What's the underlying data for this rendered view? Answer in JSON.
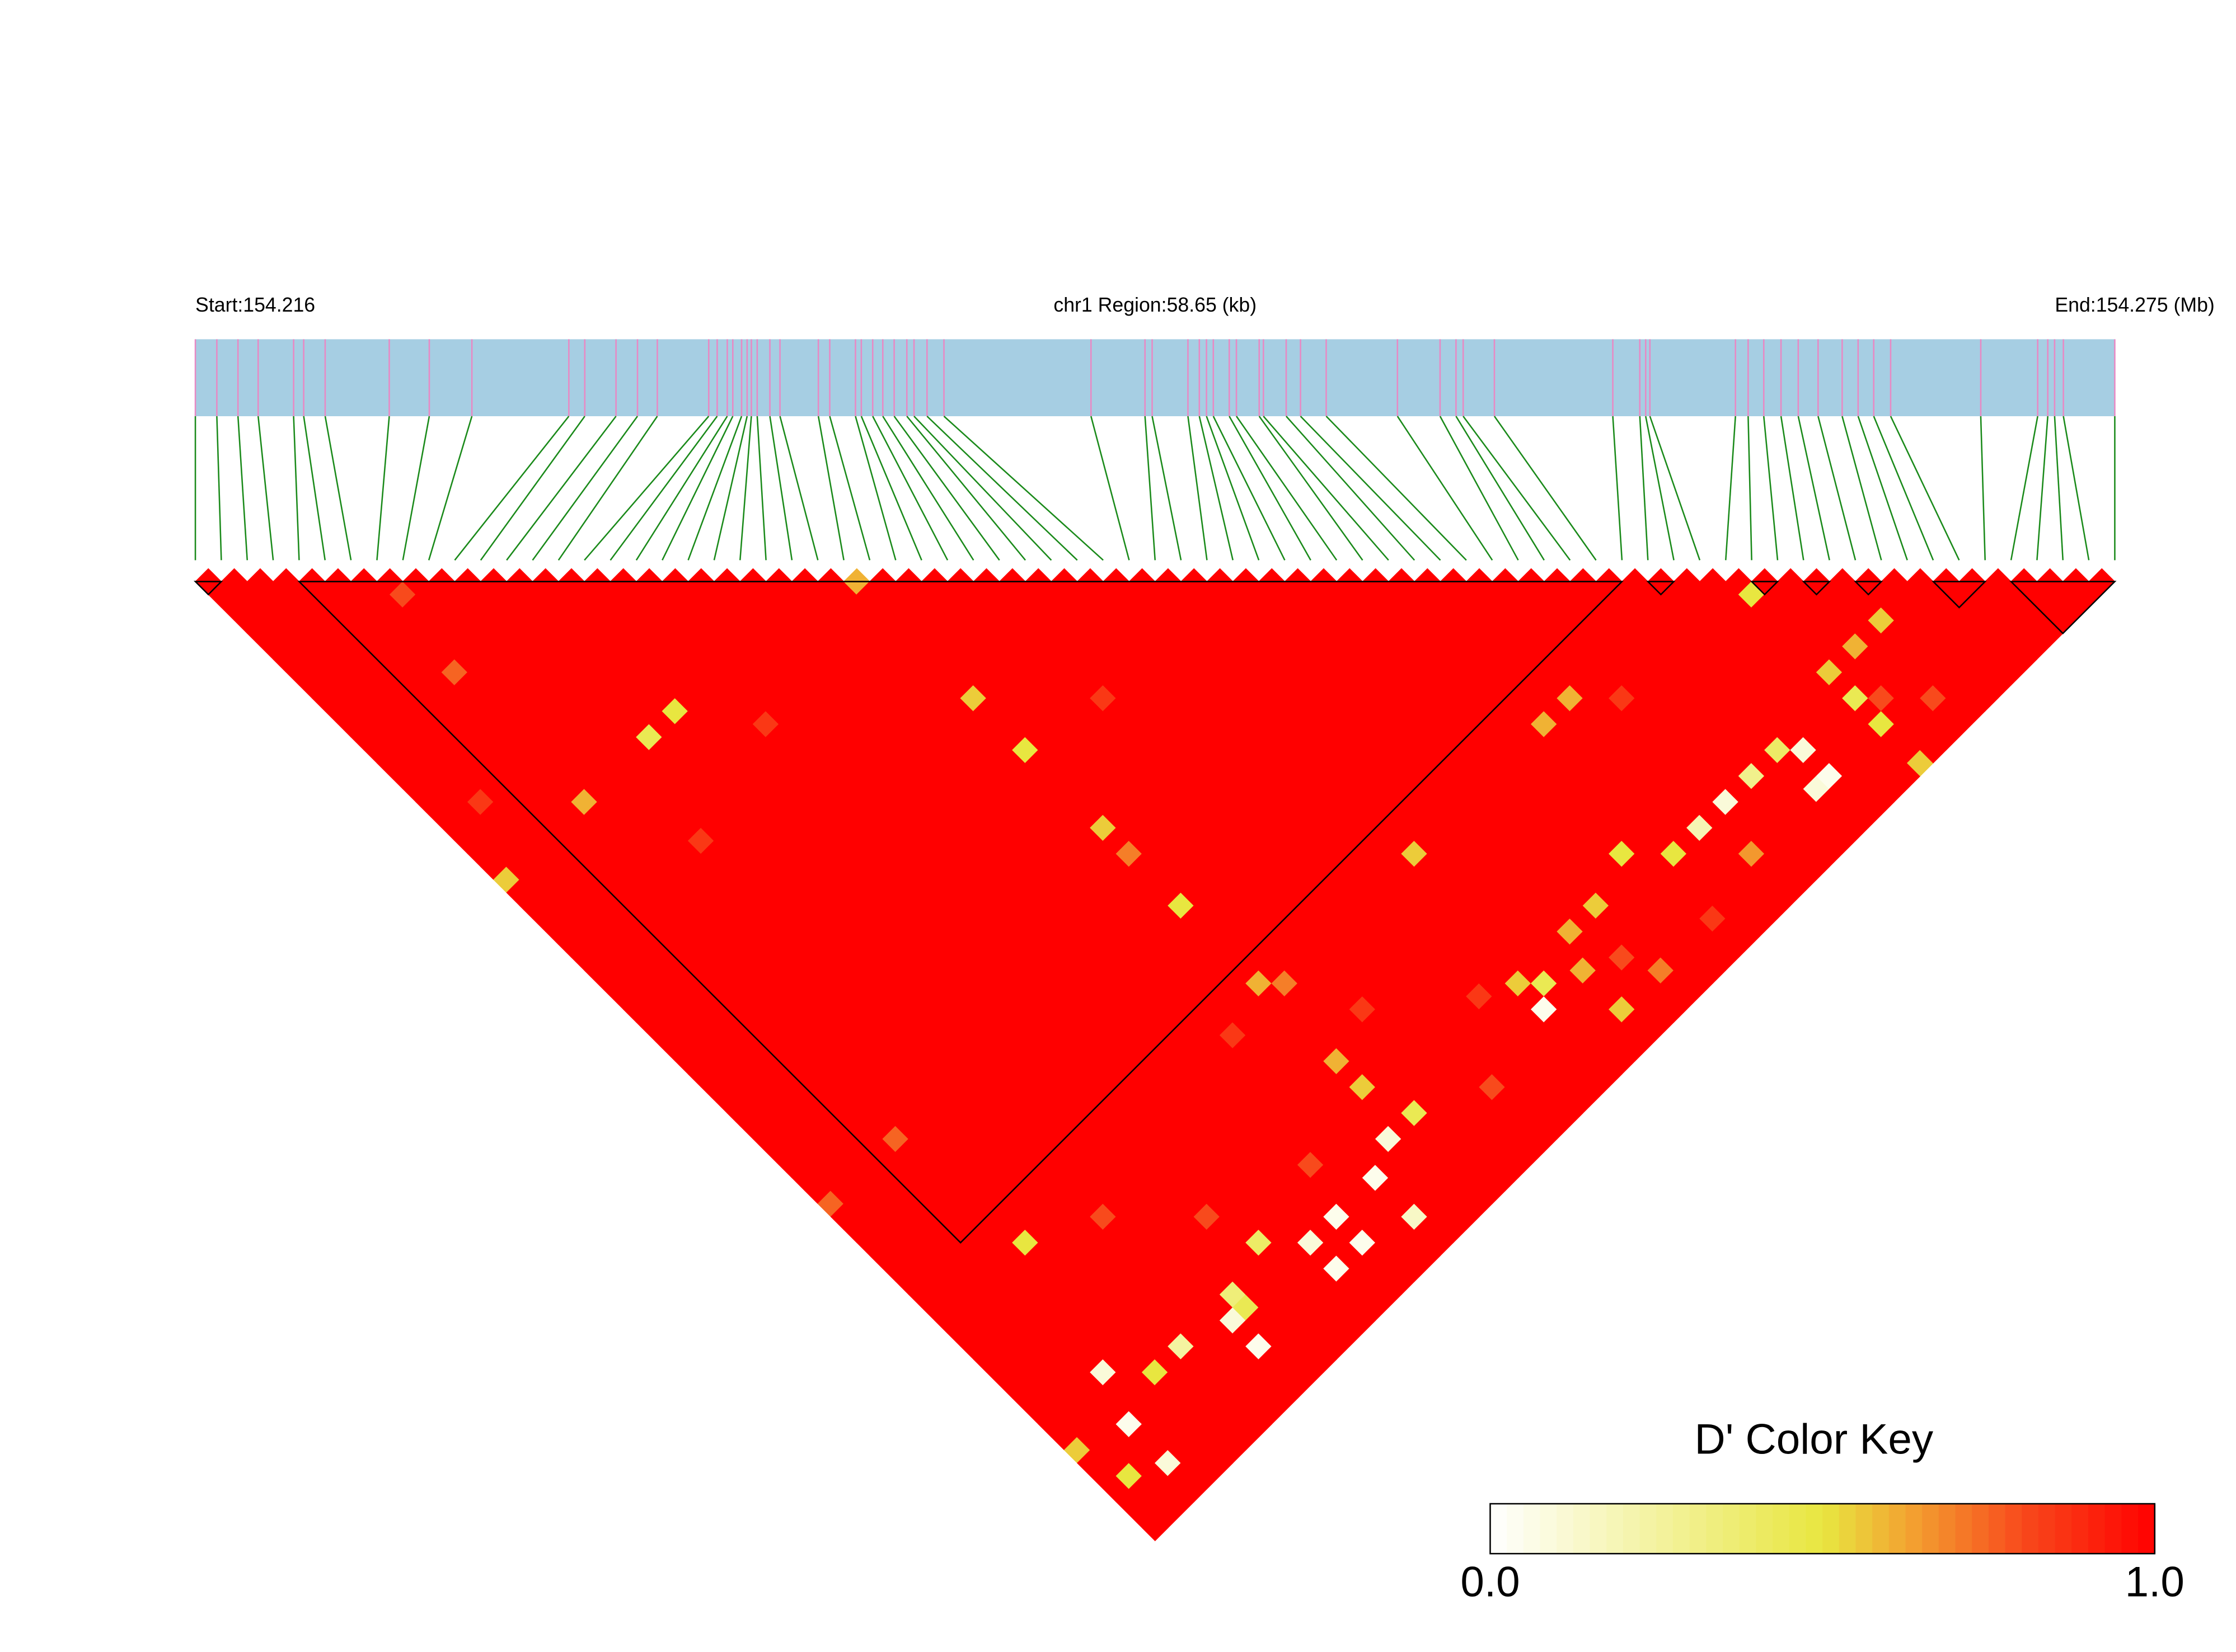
{
  "chart_data": {
    "type": "ld_heatmap",
    "start_label": "Start:154.216",
    "region_label": "chr1 Region:58.65 (kb)",
    "end_label": "End:154.275 (Mb)",
    "xlim": [
      154.216,
      154.275
    ],
    "snp_positions": [
      154.216,
      154.21666,
      154.21731,
      154.21793,
      154.21902,
      154.21933,
      154.21999,
      154.22196,
      154.22319,
      154.2245,
      154.22748,
      154.22797,
      154.22893,
      154.22959,
      154.2302,
      154.23178,
      154.23204,
      154.23235,
      154.23252,
      154.23279,
      154.23296,
      154.23309,
      154.23327,
      154.23366,
      154.23397,
      154.23515,
      154.2355,
      154.23629,
      154.23647,
      154.23682,
      154.23713,
      154.23748,
      154.23787,
      154.23809,
      154.23849,
      154.23901,
      154.24353,
      154.24519,
      154.24541,
      154.24651,
      154.24686,
      154.24708,
      154.24729,
      154.24778,
      154.248,
      154.2487,
      154.24883,
      154.24953,
      154.24997,
      154.25076,
      154.25295,
      154.25426,
      154.25475,
      154.25497,
      154.25593,
      154.25957,
      154.2604,
      154.26058,
      154.26071,
      154.26334,
      154.26373,
      154.26421,
      154.26474,
      154.26527,
      154.26588,
      154.26662,
      154.26711,
      154.26759,
      154.26811,
      154.27088,
      154.27263,
      154.27294,
      154.27315,
      154.27342,
      154.275
    ],
    "default_d": 1.0,
    "cells": [
      [
        25,
        26,
        0.6
      ],
      [
        25,
        35,
        0.55
      ],
      [
        25,
        39,
        0.5
      ],
      [
        11,
        24,
        0.45
      ],
      [
        13,
        24,
        0.5
      ],
      [
        25,
        45,
        0.55
      ],
      [
        25,
        47,
        0.7
      ],
      [
        25,
        51,
        0.5
      ],
      [
        36,
        58,
        0.55
      ],
      [
        25,
        57,
        0.6
      ],
      [
        26,
        58,
        0.7
      ],
      [
        0,
        24,
        0.55
      ],
      [
        6,
        58,
        0.5
      ],
      [
        25,
        63,
        0.6
      ],
      [
        59,
        61,
        0.5
      ],
      [
        61,
        67,
        0.6
      ],
      [
        63,
        67,
        0.55
      ],
      [
        59,
        67,
        0.55
      ],
      [
        59,
        69,
        0.45
      ],
      [
        55,
        69,
        0.1
      ],
      [
        54,
        68,
        0.4
      ],
      [
        55,
        71,
        0.05
      ],
      [
        54,
        71,
        0.1
      ],
      [
        50,
        68,
        0.1
      ],
      [
        48,
        68,
        0.2
      ],
      [
        52,
        68,
        0.3
      ],
      [
        59,
        71,
        0.5
      ],
      [
        48,
        58,
        0.6
      ],
      [
        46,
        58,
        0.6
      ],
      [
        44,
        66,
        0.5
      ],
      [
        46,
        68,
        0.5
      ],
      [
        41,
        67,
        0.55
      ],
      [
        39,
        67,
        0.6
      ],
      [
        35,
        69,
        0.05
      ],
      [
        35,
        67,
        0.55
      ],
      [
        36,
        68,
        0.45
      ],
      [
        38,
        69,
        0.6
      ],
      [
        38,
        72,
        0.55
      ],
      [
        25,
        65,
        0.55
      ],
      [
        26,
        68,
        0.45
      ],
      [
        24,
        68,
        0.1
      ],
      [
        22,
        69,
        0.05
      ],
      [
        22,
        72,
        0.15
      ],
      [
        19,
        69,
        0.05
      ],
      [
        17,
        69,
        0.1
      ],
      [
        19,
        71,
        0.05
      ],
      [
        15,
        67,
        0.4
      ],
      [
        17,
        71,
        0.05
      ],
      [
        12,
        68,
        0.35
      ],
      [
        12,
        69,
        0.45
      ],
      [
        11,
        69,
        0.1
      ],
      [
        11,
        71,
        0.05
      ],
      [
        6,
        68,
        0.5
      ],
      [
        8,
        68,
        0.25
      ],
      [
        4,
        66,
        0.1
      ],
      [
        3,
        69,
        0.05
      ],
      [
        3,
        72,
        0.1
      ],
      [
        0,
        68,
        0.55
      ],
      [
        1,
        71,
        0.5
      ],
      [
        6,
        24,
        0.6
      ],
      [
        6,
        14,
        0.75
      ],
      [
        7,
        9,
        0.8
      ],
      [
        22,
        58,
        0.85
      ],
      [
        5,
        49,
        0.75
      ],
      [
        0,
        49,
        0.75
      ],
      [
        59,
        74,
        0.55
      ],
      [
        49,
        71,
        0.65
      ],
      [
        41,
        72,
        0.7
      ],
      [
        20,
        66,
        0.8
      ],
      [
        30,
        70,
        0.8
      ],
      [
        33,
        66,
        0.85
      ],
      [
        40,
        70,
        0.8
      ],
      [
        45,
        72,
        0.85
      ],
      [
        10,
        60,
        0.8
      ],
      [
        28,
        62,
        0.85
      ],
      [
        14,
        64,
        0.8
      ],
      [
        2,
        20,
        0.85
      ],
      [
        9,
        30,
        0.85
      ],
      [
        30,
        40,
        0.85
      ],
      [
        60,
        70,
        0.8
      ],
      [
        62,
        72,
        0.8
      ],
      [
        50,
        60,
        0.85
      ],
      [
        16,
        28,
        0.85
      ]
    ],
    "blocks": [
      [
        0,
        1
      ],
      [
        4,
        55
      ],
      [
        56,
        57
      ],
      [
        60,
        61
      ],
      [
        62,
        63
      ],
      [
        64,
        65
      ],
      [
        67,
        69
      ],
      [
        70,
        74
      ]
    ],
    "colors": {
      "bar": "#a6cee3",
      "snp_line": "#e889c4",
      "connector": "#1a8a1a",
      "block_line": "#000000"
    },
    "color_key": {
      "title": "D' Color Key",
      "lim": [
        0,
        1
      ],
      "ticks": [
        {
          "value": 0,
          "label": "0.0"
        },
        {
          "value": 1,
          "label": "1.0"
        }
      ],
      "stops": [
        {
          "value": 0,
          "color": "#ffffff"
        },
        {
          "value": 0.5,
          "color": "#e8e640"
        },
        {
          "value": 0.62,
          "color": "#f2a832"
        },
        {
          "value": 0.8,
          "color": "#f84a1c"
        },
        {
          "value": 1,
          "color": "#ff0000"
        }
      ]
    }
  }
}
